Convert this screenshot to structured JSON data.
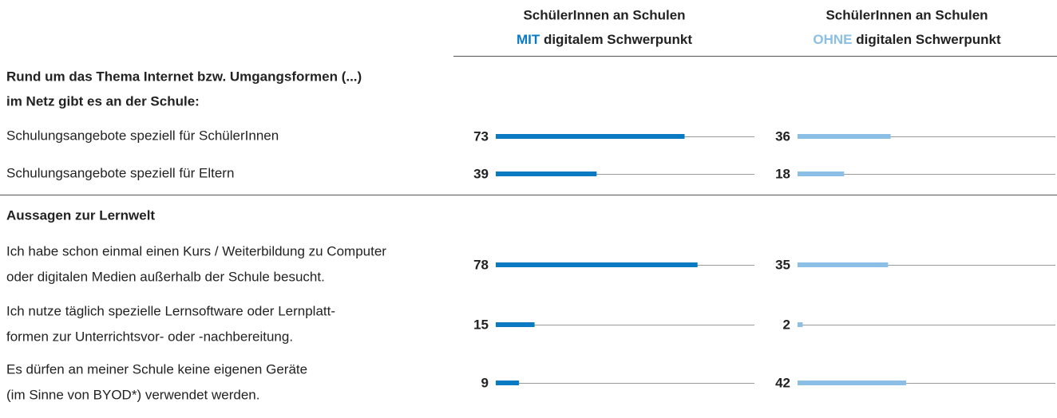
{
  "chart_data": {
    "type": "bar",
    "xlim": [
      0,
      100
    ],
    "sections": [
      {
        "title": [
          "Rund um das Thema Internet bzw. Umgangsformen (...)",
          "im Netz gibt es an der Schule:"
        ],
        "categories": [
          [
            "Schulungsangebote speziell für SchülerInnen"
          ],
          [
            "Schulungsangebote speziell für Eltern"
          ]
        ]
      },
      {
        "title": [
          "Aussagen zur Lernwelt"
        ],
        "categories": [
          [
            "Ich habe schon einmal einen Kurs / Weiterbildung zu Computer",
            "oder digitalen Medien außerhalb der Schule besucht."
          ],
          [
            "Ich nutze täglich spezielle Lernsoftware oder Lernplatt-",
            "formen zur Unterrichtsvor- oder -nachbereitung."
          ],
          [
            "Es dürfen an meiner Schule keine eigenen Geräte",
            "(im Sinne von BYOD*) verwendet werden."
          ]
        ]
      }
    ],
    "series": [
      {
        "name": [
          "SchülerInnen an Schulen",
          "MIT",
          "digitalem Schwerpunkt"
        ],
        "color": "#0a7bc2",
        "values": [
          73,
          39,
          78,
          15,
          9
        ]
      },
      {
        "name": [
          "SchülerInnen an Schulen",
          "OHNE",
          "digitalen Schwerpunkt"
        ],
        "color": "#8bbfe6",
        "values": [
          36,
          18,
          35,
          2,
          42
        ]
      }
    ]
  }
}
